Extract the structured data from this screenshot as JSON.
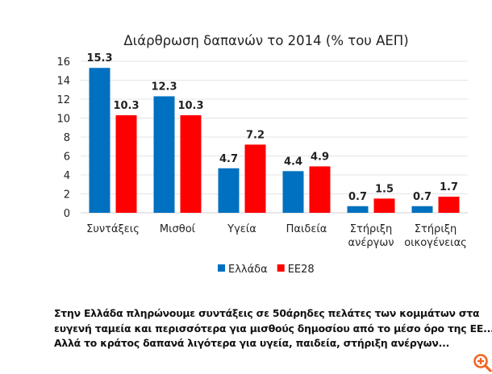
{
  "chart_data": {
    "type": "bar",
    "title": "Διάρθρωση δαπανών το 2014 (% του ΑΕΠ)",
    "categories": [
      [
        "Συντάξεις"
      ],
      [
        "Μισθοί"
      ],
      [
        "Υγεία"
      ],
      [
        "Παιδεία"
      ],
      [
        "Στήριξη",
        "ανέργων"
      ],
      [
        "Στήριξη",
        "οικογένειας"
      ]
    ],
    "series": [
      {
        "name": "Ελλάδα",
        "color": "#0070C0",
        "values": [
          15.3,
          12.3,
          4.7,
          4.4,
          0.7,
          0.7
        ]
      },
      {
        "name": "ΕΕ28",
        "color": "#FF0000",
        "values": [
          10.3,
          10.3,
          7.2,
          4.9,
          1.5,
          1.7
        ]
      }
    ],
    "yticks": [
      0,
      2,
      4,
      6,
      8,
      10,
      12,
      14,
      16
    ],
    "ylim": [
      0,
      16
    ],
    "grid": true,
    "legend": "bottom",
    "data_labels": true
  },
  "caption": [
    "Στην Ελλάδα πληρώνουμε συντάξεις σε 50άρηδες πελάτες των κομμάτων στα",
    "ευγενή ταμεία και περισσότερα για μισθούς δημοσίου από το μέσο όρο της ΕΕ...",
    "Αλλά το κράτος δαπανά λιγότερα για υγεία, παιδεία, στήριξη ανέργων..."
  ],
  "zoom_icon": {
    "name": "zoom-in-icon",
    "color": "#F26522"
  }
}
